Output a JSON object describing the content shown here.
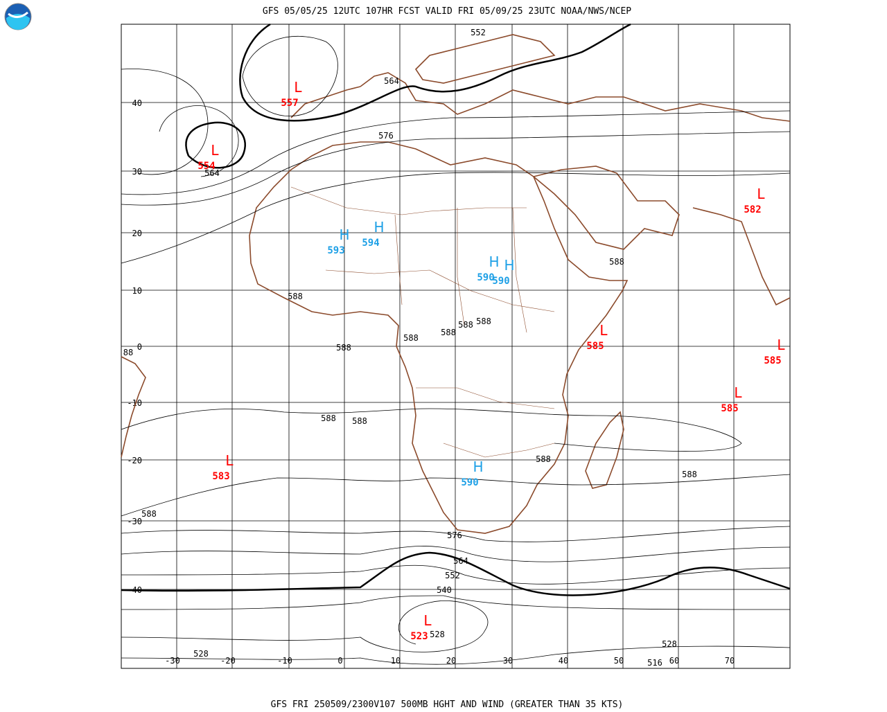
{
  "header": {
    "title": "GFS 05/05/25 12UTC 107HR FCST VALID FRI 05/09/25 23UTC NOAA/NWS/NCEP"
  },
  "footer": {
    "caption": "GFS FRI 250509/2300V107 500MB HGHT AND WIND (GREATER THAN 35 KTS)"
  },
  "map": {
    "lat_labels": [
      40,
      30,
      20,
      10,
      0,
      -10,
      -20,
      -30,
      -40
    ],
    "lon_labels": [
      -30,
      -20,
      -10,
      0,
      10,
      20,
      30,
      40,
      50,
      60,
      70
    ],
    "centers": [
      {
        "symbol": "L",
        "value": "554"
      },
      {
        "symbol": "L",
        "value": "557"
      },
      {
        "symbol": "H",
        "value": "593"
      },
      {
        "symbol": "H",
        "value": "594"
      },
      {
        "symbol": "H",
        "value": "590"
      },
      {
        "symbol": "H",
        "value": "590"
      },
      {
        "symbol": "L",
        "value": "582"
      },
      {
        "symbol": "L",
        "value": "585"
      },
      {
        "symbol": "L",
        "value": "585"
      },
      {
        "symbol": "L",
        "value": "585"
      },
      {
        "symbol": "L",
        "value": "583"
      },
      {
        "symbol": "H",
        "value": "590"
      },
      {
        "symbol": "L",
        "value": "523"
      }
    ],
    "contour_labels": [
      "552",
      "564",
      "576",
      "564",
      "588",
      "588",
      "88",
      "588",
      "588",
      "588",
      "588",
      "588",
      "588",
      "588",
      "588",
      "588",
      "588",
      "576",
      "564",
      "552",
      "540",
      "528",
      "528",
      "528",
      "516"
    ]
  }
}
